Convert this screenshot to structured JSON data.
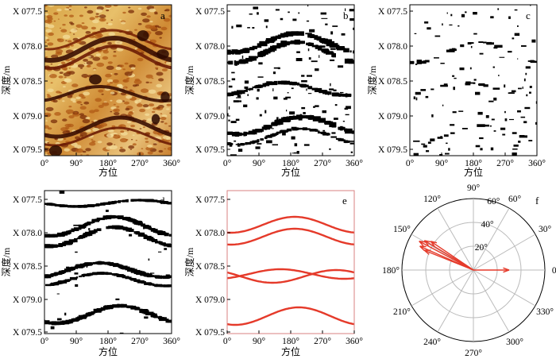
{
  "figure": {
    "depth_ticks": [
      "X 077.5",
      "X 078.0",
      "X 078.5",
      "X 079.0",
      "X 079.5"
    ],
    "azimuth_ticks": [
      "0°",
      "90°",
      "180°",
      "270°",
      "360°"
    ],
    "ylabel": "深度/m",
    "xlabel": "方位",
    "panels": [
      {
        "letter": "a"
      },
      {
        "letter": "b"
      },
      {
        "letter": "c"
      },
      {
        "letter": "d"
      },
      {
        "letter": "e"
      },
      {
        "letter": "f"
      }
    ],
    "polar": {
      "angle_labels": [
        "0°",
        "30°",
        "60°",
        "90°",
        "120°",
        "150°",
        "180°",
        "210°",
        "240°",
        "270°",
        "300°",
        "330°"
      ],
      "radius_labels": [
        "20°",
        "40°",
        "60°"
      ]
    }
  }
}
